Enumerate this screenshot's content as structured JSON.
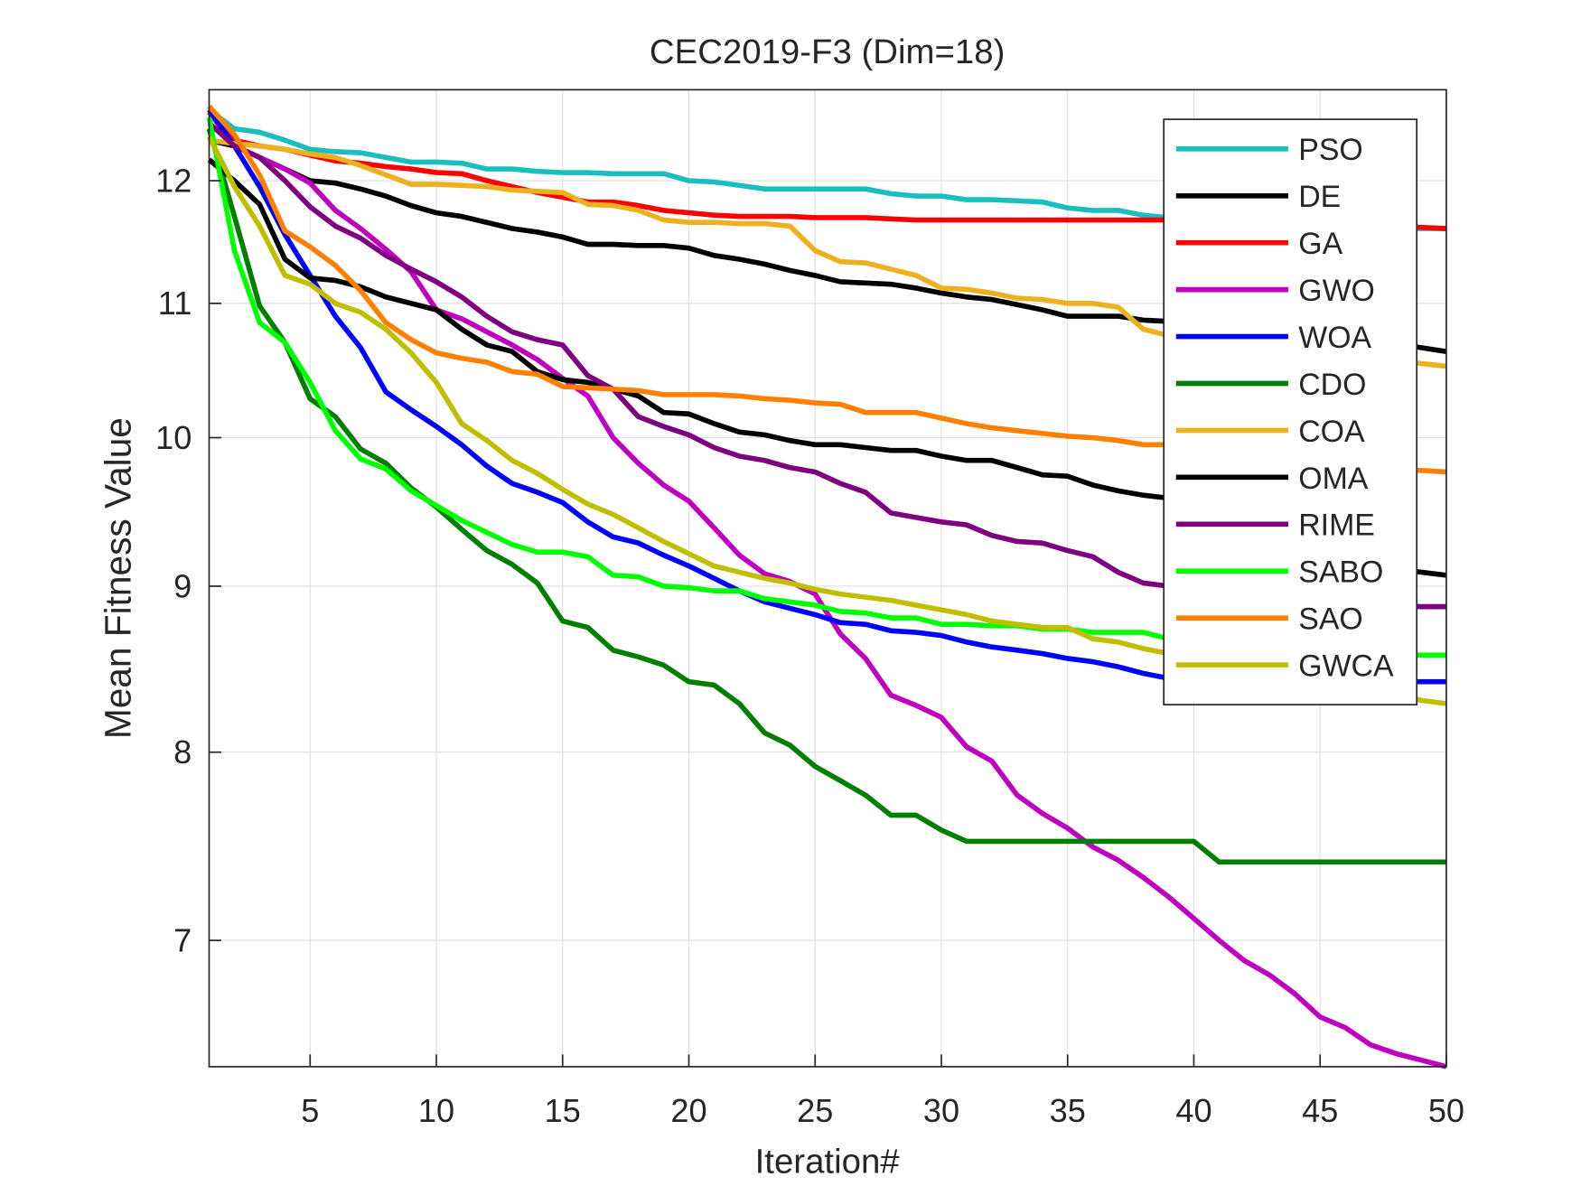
{
  "chart_data": {
    "type": "line",
    "title": "CEC2019-F3 (Dim=18)",
    "xlabel": "Iteration#",
    "ylabel": "Mean Fitness Value",
    "yscale": "log",
    "grid": true,
    "legend": "upper right",
    "xlim": [
      1,
      50
    ],
    "ylim": [
      6.4,
      12.8
    ],
    "xticks": [
      5,
      10,
      15,
      20,
      25,
      30,
      35,
      40,
      45,
      50
    ],
    "yticks": [
      7,
      8,
      9,
      10,
      11,
      12
    ],
    "x": [
      1,
      2,
      3,
      4,
      5,
      6,
      7,
      8,
      9,
      10,
      11,
      12,
      13,
      14,
      15,
      16,
      17,
      18,
      19,
      20,
      21,
      22,
      23,
      24,
      25,
      26,
      27,
      28,
      29,
      30,
      31,
      32,
      33,
      34,
      35,
      36,
      37,
      38,
      39,
      40,
      41,
      42,
      43,
      44,
      45,
      46,
      47,
      48,
      49,
      50
    ],
    "series": [
      {
        "name": "PSO",
        "color": "#19bfbf",
        "values": [
          12.62,
          12.45,
          12.42,
          12.35,
          12.27,
          12.25,
          12.24,
          12.2,
          12.16,
          12.16,
          12.15,
          12.1,
          12.1,
          12.08,
          12.07,
          12.07,
          12.06,
          12.06,
          12.06,
          12.0,
          11.99,
          11.96,
          11.93,
          11.93,
          11.93,
          11.93,
          11.93,
          11.89,
          11.87,
          11.87,
          11.84,
          11.84,
          11.83,
          11.82,
          11.77,
          11.75,
          11.75,
          11.71,
          11.69,
          11.68,
          11.67,
          11.66,
          11.65,
          11.64,
          11.63,
          11.62,
          11.61,
          11.6,
          11.6,
          11.6
        ]
      },
      {
        "name": "DE",
        "color": "#000000",
        "values": [
          12.35,
          12.3,
          12.2,
          12.1,
          12.0,
          11.98,
          11.93,
          11.87,
          11.79,
          11.73,
          11.7,
          11.65,
          11.6,
          11.57,
          11.53,
          11.47,
          11.47,
          11.46,
          11.46,
          11.44,
          11.38,
          11.35,
          11.31,
          11.26,
          11.22,
          11.17,
          11.16,
          11.15,
          11.12,
          11.08,
          11.05,
          11.03,
          10.99,
          10.95,
          10.9,
          10.9,
          10.9,
          10.87,
          10.86,
          10.85,
          10.84,
          10.82,
          10.8,
          10.78,
          10.76,
          10.74,
          10.71,
          10.69,
          10.66,
          10.63
        ]
      },
      {
        "name": "GA",
        "color": "#ff0000",
        "values": [
          12.62,
          12.35,
          12.3,
          12.27,
          12.22,
          12.17,
          12.15,
          12.12,
          12.1,
          12.07,
          12.06,
          12.0,
          11.95,
          11.9,
          11.86,
          11.82,
          11.82,
          11.79,
          11.75,
          11.73,
          11.71,
          11.7,
          11.7,
          11.7,
          11.69,
          11.69,
          11.69,
          11.68,
          11.67,
          11.67,
          11.67,
          11.67,
          11.67,
          11.67,
          11.67,
          11.67,
          11.67,
          11.67,
          11.67,
          11.67,
          11.66,
          11.66,
          11.65,
          11.65,
          11.64,
          11.63,
          11.63,
          11.62,
          11.61,
          11.6
        ]
      },
      {
        "name": "GWO",
        "color": "#bf00bf",
        "values": [
          12.6,
          12.3,
          12.2,
          12.1,
          11.98,
          11.75,
          11.6,
          11.43,
          11.25,
          10.95,
          10.88,
          10.78,
          10.68,
          10.57,
          10.43,
          10.3,
          10.0,
          9.82,
          9.67,
          9.56,
          9.38,
          9.2,
          9.08,
          9.03,
          8.95,
          8.7,
          8.55,
          8.33,
          8.27,
          8.2,
          8.03,
          7.95,
          7.76,
          7.66,
          7.58,
          7.48,
          7.41,
          7.32,
          7.22,
          7.11,
          7.0,
          6.9,
          6.83,
          6.74,
          6.63,
          6.58,
          6.5,
          6.46,
          6.43,
          6.4
        ]
      },
      {
        "name": "WOA",
        "color": "#0000ff",
        "values": [
          12.62,
          12.3,
          11.95,
          11.55,
          11.22,
          10.9,
          10.66,
          10.33,
          10.2,
          10.08,
          9.95,
          9.8,
          9.68,
          9.62,
          9.55,
          9.42,
          9.32,
          9.28,
          9.2,
          9.13,
          9.05,
          8.97,
          8.9,
          8.86,
          8.82,
          8.77,
          8.76,
          8.72,
          8.71,
          8.69,
          8.65,
          8.62,
          8.6,
          8.58,
          8.55,
          8.53,
          8.5,
          8.46,
          8.43,
          8.41,
          8.41,
          8.41,
          8.41,
          8.41,
          8.41,
          8.41,
          8.41,
          8.41,
          8.41,
          8.41
        ]
      },
      {
        "name": "CDO",
        "color": "#007f00",
        "values": [
          12.45,
          11.7,
          10.98,
          10.7,
          10.28,
          10.15,
          9.92,
          9.82,
          9.65,
          9.52,
          9.37,
          9.23,
          9.14,
          9.02,
          8.78,
          8.74,
          8.6,
          8.56,
          8.51,
          8.41,
          8.39,
          8.28,
          8.11,
          8.04,
          7.92,
          7.84,
          7.76,
          7.65,
          7.65,
          7.57,
          7.51,
          7.51,
          7.51,
          7.51,
          7.51,
          7.51,
          7.51,
          7.51,
          7.51,
          7.51,
          7.4,
          7.4,
          7.4,
          7.4,
          7.4,
          7.4,
          7.4,
          7.4,
          7.4,
          7.4
        ]
      },
      {
        "name": "COA",
        "color": "#edb120",
        "values": [
          12.35,
          12.32,
          12.3,
          12.27,
          12.23,
          12.2,
          12.13,
          12.05,
          11.97,
          11.97,
          11.96,
          11.95,
          11.92,
          11.91,
          11.9,
          11.8,
          11.79,
          11.75,
          11.67,
          11.65,
          11.65,
          11.64,
          11.64,
          11.62,
          11.42,
          11.33,
          11.32,
          11.27,
          11.22,
          11.12,
          11.11,
          11.08,
          11.04,
          11.03,
          11.0,
          11.0,
          10.97,
          10.8,
          10.75,
          10.72,
          10.7,
          10.68,
          10.66,
          10.64,
          10.62,
          10.6,
          10.58,
          10.56,
          10.54,
          10.52
        ]
      },
      {
        "name": "OMA",
        "color": "#000000",
        "values": [
          12.18,
          12.0,
          11.8,
          11.35,
          11.2,
          11.18,
          11.13,
          11.05,
          11.0,
          10.95,
          10.8,
          10.68,
          10.63,
          10.48,
          10.42,
          10.4,
          10.35,
          10.3,
          10.18,
          10.17,
          10.1,
          10.04,
          10.02,
          9.98,
          9.95,
          9.95,
          9.93,
          9.91,
          9.91,
          9.87,
          9.84,
          9.84,
          9.79,
          9.74,
          9.73,
          9.67,
          9.63,
          9.6,
          9.58,
          9.54,
          9.48,
          9.42,
          9.36,
          9.3,
          9.25,
          9.2,
          9.15,
          9.11,
          9.09,
          9.07
        ]
      },
      {
        "name": "RIME",
        "color": "#7e0080",
        "values": [
          12.5,
          12.3,
          12.2,
          12.0,
          11.78,
          11.62,
          11.52,
          11.38,
          11.27,
          11.17,
          11.05,
          10.9,
          10.78,
          10.72,
          10.68,
          10.45,
          10.35,
          10.15,
          10.08,
          10.02,
          9.93,
          9.87,
          9.84,
          9.79,
          9.76,
          9.68,
          9.62,
          9.48,
          9.45,
          9.42,
          9.4,
          9.33,
          9.29,
          9.28,
          9.23,
          9.19,
          9.09,
          9.02,
          9.0,
          8.98,
          8.96,
          8.95,
          8.93,
          8.92,
          8.91,
          8.9,
          8.89,
          8.88,
          8.87,
          8.87
        ]
      },
      {
        "name": "SABO",
        "color": "#00ff00",
        "values": [
          12.55,
          11.42,
          10.85,
          10.7,
          10.4,
          10.05,
          9.85,
          9.78,
          9.63,
          9.53,
          9.43,
          9.35,
          9.27,
          9.22,
          9.22,
          9.19,
          9.07,
          9.06,
          9.0,
          8.99,
          8.97,
          8.97,
          8.92,
          8.9,
          8.88,
          8.84,
          8.83,
          8.8,
          8.8,
          8.76,
          8.76,
          8.75,
          8.75,
          8.73,
          8.73,
          8.71,
          8.71,
          8.71,
          8.67,
          8.65,
          8.64,
          8.63,
          8.62,
          8.61,
          8.6,
          8.59,
          8.58,
          8.58,
          8.57,
          8.57
        ]
      },
      {
        "name": "SAO",
        "color": "#ff8000",
        "values": [
          12.65,
          12.4,
          12.05,
          11.58,
          11.45,
          11.3,
          11.1,
          10.85,
          10.72,
          10.62,
          10.58,
          10.55,
          10.48,
          10.46,
          10.37,
          10.36,
          10.35,
          10.34,
          10.31,
          10.31,
          10.31,
          10.3,
          10.28,
          10.27,
          10.25,
          10.24,
          10.18,
          10.18,
          10.18,
          10.14,
          10.1,
          10.07,
          10.05,
          10.03,
          10.01,
          10.0,
          9.98,
          9.95,
          9.95,
          9.93,
          9.91,
          9.89,
          9.87,
          9.85,
          9.83,
          9.81,
          9.8,
          9.78,
          9.77,
          9.76
        ]
      },
      {
        "name": "GWCA",
        "color": "#bfbf00",
        "values": [
          12.38,
          11.95,
          11.62,
          11.22,
          11.15,
          11.0,
          10.93,
          10.8,
          10.62,
          10.4,
          10.1,
          9.98,
          9.84,
          9.75,
          9.64,
          9.54,
          9.47,
          9.38,
          9.29,
          9.21,
          9.13,
          9.09,
          9.05,
          9.02,
          8.98,
          8.95,
          8.93,
          8.91,
          8.88,
          8.85,
          8.82,
          8.78,
          8.76,
          8.74,
          8.74,
          8.67,
          8.65,
          8.61,
          8.58,
          8.56,
          8.53,
          8.5,
          8.47,
          8.44,
          8.41,
          8.38,
          8.35,
          8.33,
          8.3,
          8.28
        ]
      }
    ]
  }
}
